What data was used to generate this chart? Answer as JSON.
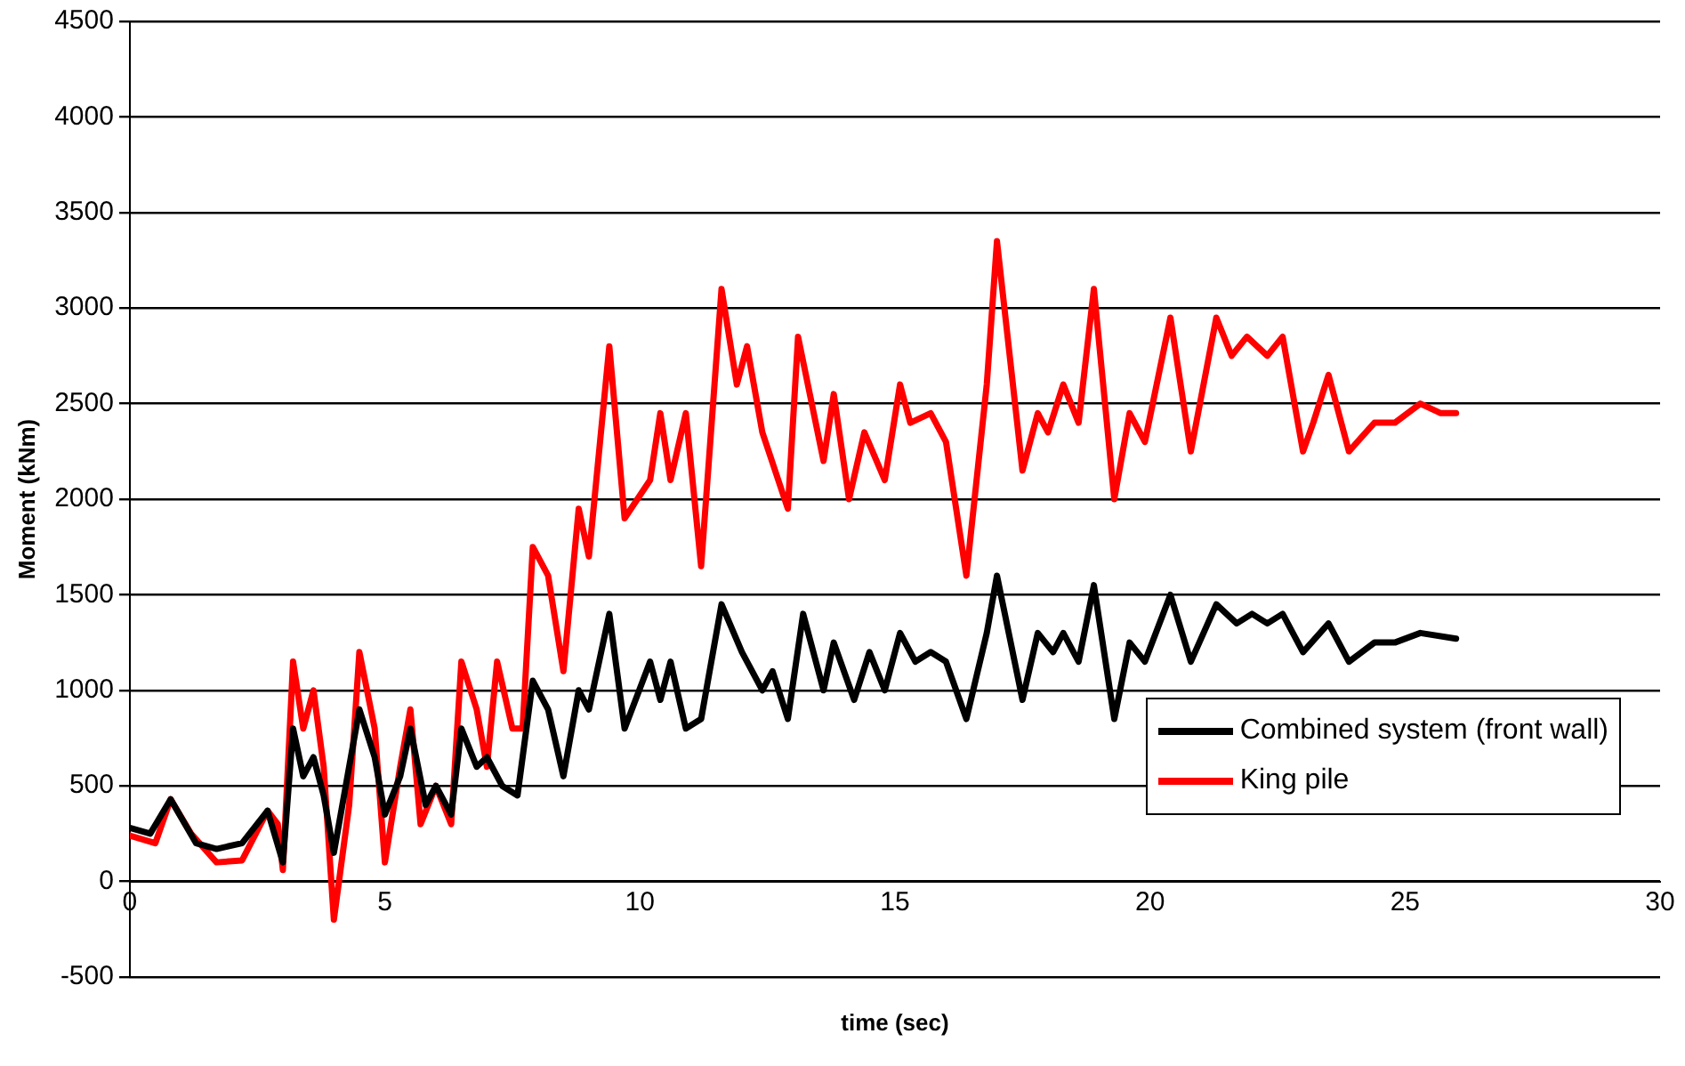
{
  "chart_data": {
    "type": "line",
    "xlabel": "time (sec)",
    "ylabel": "Moment (kNm)",
    "xlim": [
      0,
      30
    ],
    "xticks": [
      0,
      5,
      10,
      15,
      20,
      25,
      30
    ],
    "ylim": [
      -500,
      4500
    ],
    "yticks": [
      -500,
      0,
      500,
      1000,
      1500,
      2000,
      2500,
      3000,
      3500,
      4000,
      4500
    ],
    "grid": "y",
    "legend": "bottom right",
    "marker": "none",
    "line_style": "solid",
    "series": [
      {
        "name": "Combined system (front wall)",
        "color": "#000000",
        "x": [
          0,
          0.4,
          0.8,
          1.3,
          1.7,
          2.2,
          2.7,
          3.0,
          3.2,
          3.4,
          3.6,
          3.8,
          4.0,
          4.3,
          4.5,
          4.8,
          5.0,
          5.3,
          5.5,
          5.8,
          6.0,
          6.3,
          6.5,
          6.8,
          7.0,
          7.3,
          7.6,
          7.9,
          8.2,
          8.5,
          8.8,
          9.0,
          9.4,
          9.7,
          10.2,
          10.4,
          10.6,
          10.9,
          11.2,
          11.6,
          12.0,
          12.4,
          12.6,
          12.9,
          13.2,
          13.6,
          13.8,
          14.2,
          14.5,
          14.8,
          15.1,
          15.4,
          15.7,
          16.0,
          16.4,
          16.8,
          17.0,
          17.5,
          17.8,
          18.1,
          18.3,
          18.6,
          18.9,
          19.3,
          19.6,
          19.9,
          20.4,
          20.8,
          21.3,
          21.7,
          22.0,
          22.3,
          22.6,
          23.0,
          23.5,
          23.9,
          24.4,
          24.8,
          25.3,
          26.0
        ],
        "values": [
          280,
          250,
          430,
          200,
          170,
          200,
          370,
          100,
          800,
          550,
          650,
          450,
          150,
          600,
          900,
          650,
          350,
          550,
          800,
          400,
          500,
          350,
          800,
          600,
          650,
          500,
          450,
          1050,
          900,
          550,
          1000,
          900,
          1400,
          800,
          1150,
          950,
          1150,
          800,
          850,
          1450,
          1200,
          1000,
          1100,
          850,
          1400,
          1000,
          1250,
          950,
          1200,
          1000,
          1300,
          1150,
          1200,
          1150,
          850,
          1300,
          1600,
          950,
          1300,
          1200,
          1300,
          1150,
          1550,
          850,
          1250,
          1150,
          1500,
          1150,
          1450,
          1350,
          1400,
          1350,
          1400,
          1200,
          1350,
          1150,
          1250,
          1250,
          1300,
          1270
        ]
      },
      {
        "name": "King pile",
        "color": "#ff0000",
        "x": [
          0,
          0.5,
          0.8,
          1.2,
          1.7,
          2.2,
          2.7,
          2.9,
          3.0,
          3.2,
          3.4,
          3.6,
          3.8,
          4.0,
          4.3,
          4.5,
          4.8,
          5.0,
          5.3,
          5.5,
          5.7,
          6.0,
          6.3,
          6.5,
          6.8,
          7.0,
          7.2,
          7.5,
          7.7,
          7.9,
          8.2,
          8.5,
          8.8,
          9.0,
          9.4,
          9.7,
          10.2,
          10.4,
          10.6,
          10.9,
          11.2,
          11.6,
          11.9,
          12.1,
          12.4,
          12.9,
          13.1,
          13.6,
          13.8,
          14.1,
          14.4,
          14.8,
          15.1,
          15.3,
          15.7,
          16.0,
          16.4,
          16.8,
          17.0,
          17.5,
          17.8,
          18.0,
          18.3,
          18.6,
          18.9,
          19.3,
          19.6,
          19.9,
          20.4,
          20.8,
          21.3,
          21.6,
          21.9,
          22.3,
          22.6,
          23.0,
          23.2,
          23.5,
          23.9,
          24.4,
          24.8,
          25.3,
          25.7,
          26.0
        ],
        "values": [
          240,
          200,
          430,
          250,
          100,
          110,
          370,
          300,
          60,
          1150,
          800,
          1000,
          600,
          -200,
          400,
          1200,
          800,
          100,
          600,
          900,
          300,
          500,
          300,
          1150,
          900,
          600,
          1150,
          800,
          800,
          1750,
          1600,
          1100,
          1950,
          1700,
          2800,
          1900,
          2100,
          2450,
          2100,
          2450,
          1650,
          3100,
          2600,
          2800,
          2350,
          1950,
          2850,
          2200,
          2550,
          2000,
          2350,
          2100,
          2600,
          2400,
          2450,
          2300,
          1600,
          2600,
          3350,
          2150,
          2450,
          2350,
          2600,
          2400,
          3100,
          2000,
          2450,
          2300,
          2950,
          2250,
          2950,
          2750,
          2850,
          2750,
          2850,
          2250,
          2400,
          2650,
          2250,
          2400,
          2400,
          2500,
          2450,
          2450
        ]
      }
    ]
  }
}
